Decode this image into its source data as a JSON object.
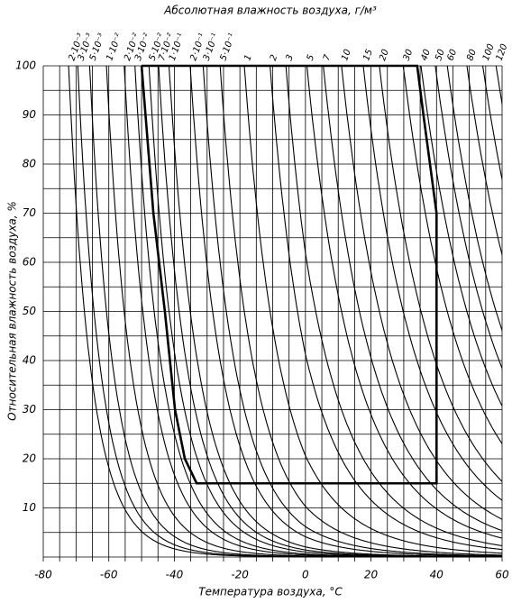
{
  "chart_data": {
    "type": "isoline",
    "title": "Абсолютная влажность воздуха, г/м³",
    "x_label": "Температура воздуха, °C",
    "y_label": "Относительная влажность воздуха, %",
    "xlim": [
      -80,
      60
    ],
    "ylim": [
      0,
      100
    ],
    "xticks": [
      -80,
      -60,
      -40,
      -20,
      0,
      20,
      40,
      60
    ],
    "yticks": [
      10,
      20,
      30,
      40,
      50,
      60,
      70,
      80,
      90,
      100
    ],
    "xgrid": [
      -80,
      -75,
      -70,
      -65,
      -60,
      -55,
      -50,
      -45,
      -40,
      -35,
      -30,
      -25,
      -20,
      -15,
      -10,
      -5,
      0,
      5,
      10,
      15,
      20,
      25,
      30,
      35,
      40,
      45,
      50,
      55,
      60
    ],
    "ygrid": [
      0,
      5,
      10,
      15,
      20,
      25,
      30,
      35,
      40,
      45,
      50,
      55,
      60,
      65,
      70,
      75,
      80,
      85,
      90,
      95,
      100
    ],
    "isolines": [
      {
        "value": 0.002,
        "label": "2·10⁻³"
      },
      {
        "value": 0.003,
        "label": "3·10⁻³"
      },
      {
        "value": 0.005,
        "label": "5·10⁻³"
      },
      {
        "value": 0.01,
        "label": "1·10⁻²"
      },
      {
        "value": 0.02,
        "label": "2·10⁻²"
      },
      {
        "value": 0.03,
        "label": "3·10⁻²"
      },
      {
        "value": 0.05,
        "label": "5·10⁻²"
      },
      {
        "value": 0.07,
        "label": "7·10⁻²"
      },
      {
        "value": 0.1,
        "label": "1·10⁻¹"
      },
      {
        "value": 0.2,
        "label": "2·10⁻¹"
      },
      {
        "value": 0.3,
        "label": "3·10⁻¹"
      },
      {
        "value": 0.5,
        "label": "5·10⁻¹"
      },
      1,
      2,
      3,
      5,
      7,
      10,
      15,
      20,
      30,
      40,
      50,
      60,
      80,
      100,
      120
    ],
    "region": {
      "x": [
        -50,
        -46.4,
        -42.9,
        -39.8,
        -36.8,
        -33.2,
        40,
        40,
        38,
        36,
        34.1,
        -50
      ],
      "y": [
        100,
        70,
        50,
        30,
        20,
        15,
        15,
        70,
        80,
        90,
        100,
        100
      ]
    }
  }
}
